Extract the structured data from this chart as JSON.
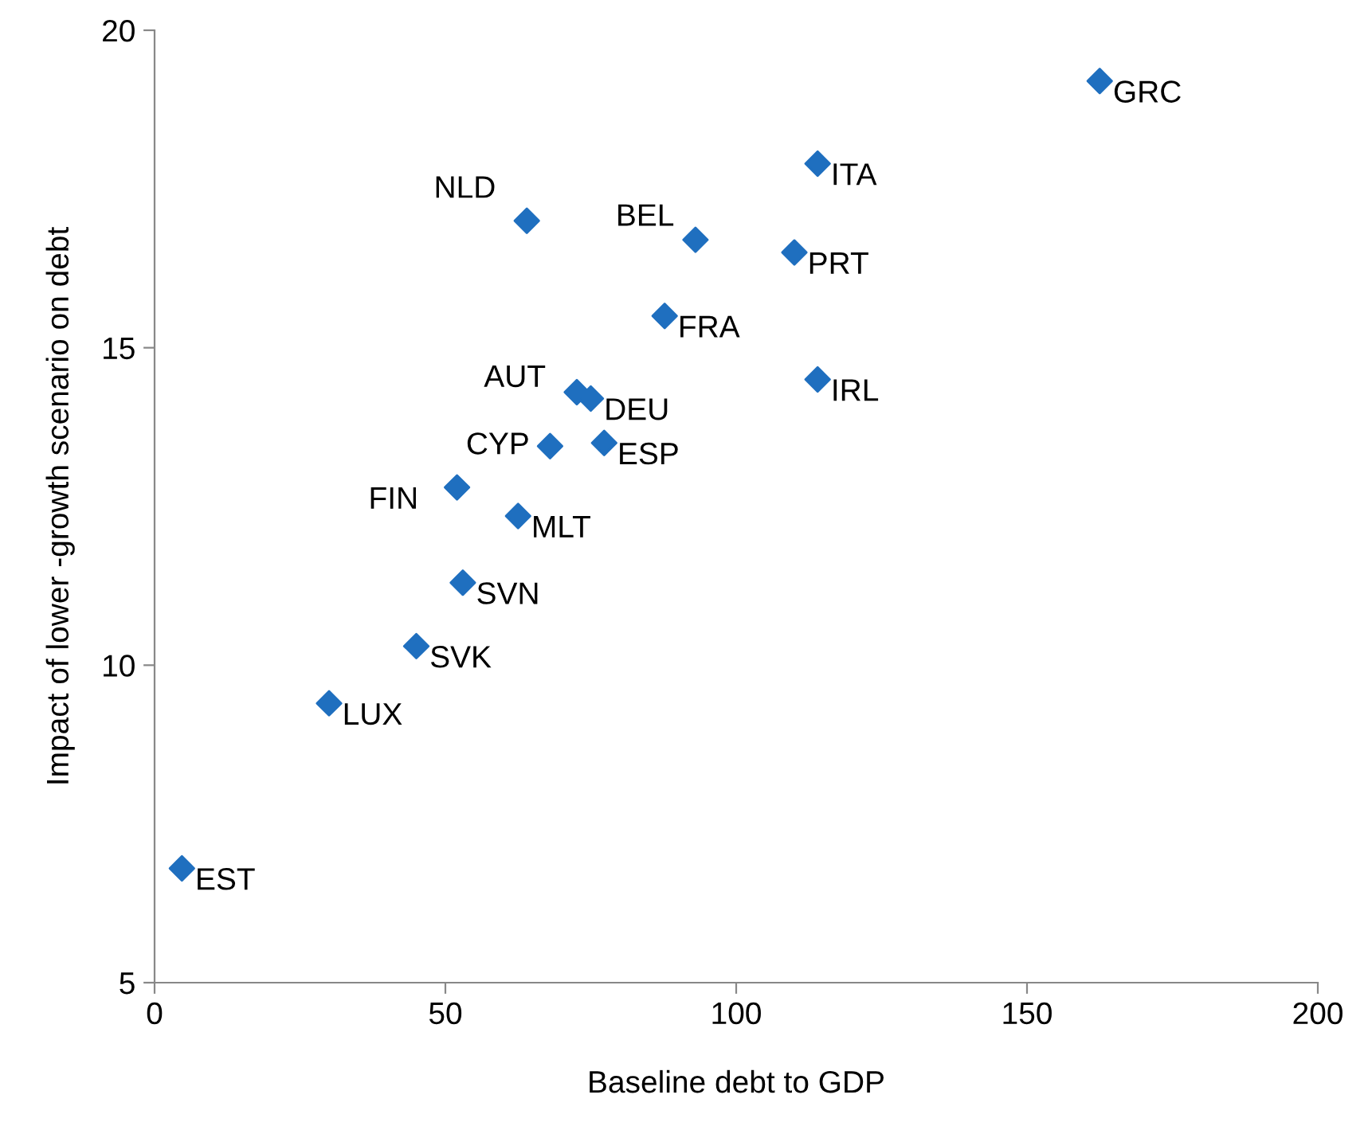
{
  "chart_data": {
    "type": "scatter",
    "xlabel": "Baseline debt to GDP",
    "ylabel": "Impact of lower -growth scenario on debt",
    "x": [
      162.5,
      114,
      64,
      93,
      110,
      87.7,
      114,
      72.6,
      75,
      77.3,
      68,
      52,
      62.5,
      53,
      45,
      30,
      4.7
    ],
    "series": [
      {
        "color": "#1f6fbf",
        "values": [
          19.2,
          17.9,
          17.0,
          16.7,
          16.5,
          15.5,
          14.5,
          14.3,
          14.2,
          13.5,
          13.45,
          12.8,
          12.35,
          11.3,
          10.3,
          9.4,
          6.8
        ]
      }
    ],
    "marker": "diamond",
    "xlim": [
      0,
      200
    ],
    "xticks": [
      0,
      50,
      100,
      150,
      200
    ],
    "ylim": [
      5,
      20
    ],
    "yticks": [
      5,
      10,
      15,
      20
    ],
    "grid": false,
    "legend": false,
    "annotations": [
      {
        "text": "GRC",
        "x": 162.5,
        "y": 19.2
      },
      {
        "text": "ITA",
        "x": 114,
        "y": 17.9
      },
      {
        "text": "NLD",
        "x": 64,
        "y": 17.0
      },
      {
        "text": "BEL",
        "x": 93,
        "y": 16.7
      },
      {
        "text": "PRT",
        "x": 110,
        "y": 16.5
      },
      {
        "text": "FRA",
        "x": 87.7,
        "y": 15.5
      },
      {
        "text": "IRL",
        "x": 114,
        "y": 14.5
      },
      {
        "text": "AUT",
        "x": 72.6,
        "y": 14.3
      },
      {
        "text": "DEU",
        "x": 75,
        "y": 14.2
      },
      {
        "text": "ESP",
        "x": 77.3,
        "y": 13.5
      },
      {
        "text": "CYP",
        "x": 68,
        "y": 13.45
      },
      {
        "text": "FIN",
        "x": 52,
        "y": 12.8
      },
      {
        "text": "MLT",
        "x": 62.5,
        "y": 12.35
      },
      {
        "text": "SVN",
        "x": 53,
        "y": 11.3
      },
      {
        "text": "SVK",
        "x": 45,
        "y": 10.3
      },
      {
        "text": "LUX",
        "x": 30,
        "y": 9.4
      },
      {
        "text": "EST",
        "x": 4.7,
        "y": 6.8
      }
    ]
  }
}
